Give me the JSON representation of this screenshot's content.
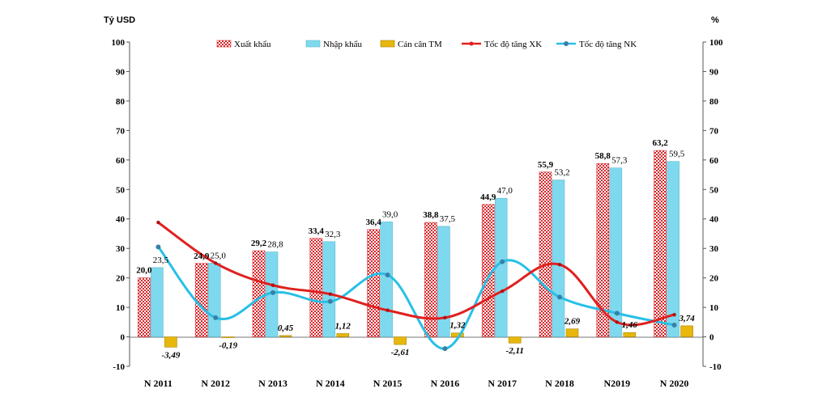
{
  "chart_data": {
    "type": "bar",
    "left_unit": "Tỷ USD",
    "right_unit": "%",
    "categories": [
      "N 2011",
      "N 2012",
      "N 2013",
      "N 2014",
      "N 2015",
      "N 2016",
      "N 2017",
      "N 2018",
      "N2019",
      "N 2020"
    ],
    "ylim": [
      -10,
      100
    ],
    "y2lim": [
      -10,
      100
    ],
    "y_ticks": [
      "-10",
      "0",
      "10",
      "20",
      "30",
      "40",
      "50",
      "60",
      "70",
      "80",
      "90",
      "100"
    ],
    "y2_ticks": [
      "-10",
      "0",
      "10",
      "20",
      "30",
      "40",
      "50",
      "60",
      "70",
      "80",
      "90",
      "100"
    ],
    "legend_position": "top",
    "series": [
      {
        "name": "Xuất khẩu",
        "kind": "bar",
        "axis": "left",
        "color": "#d9262a",
        "values": [
          20.0,
          24.9,
          29.2,
          33.4,
          36.4,
          38.8,
          44.9,
          55.9,
          58.8,
          63.2
        ],
        "labels": [
          "20,0",
          "24,9",
          "29,2",
          "33,4",
          "36,4",
          "38,8",
          "44,9",
          "55,9",
          "58,8",
          "63,2"
        ]
      },
      {
        "name": "Nhập khẩu",
        "kind": "bar",
        "axis": "left",
        "color": "#7fd9ee",
        "values": [
          23.5,
          25.0,
          28.8,
          32.3,
          39.0,
          37.5,
          47.0,
          53.2,
          57.3,
          59.5
        ],
        "labels": [
          "23,5",
          "25,0",
          "28,8",
          "32,3",
          "39,0",
          "37,5",
          "47,0",
          "53,2",
          "57,3",
          "59,5"
        ]
      },
      {
        "name": "Cán cân TM",
        "kind": "bar",
        "axis": "left",
        "color": "#e8b70c",
        "values": [
          -3.49,
          -0.19,
          0.45,
          1.12,
          -2.61,
          1.32,
          -2.11,
          2.69,
          1.46,
          3.74
        ],
        "labels": [
          "-3,49",
          "-0,19",
          "0,45",
          "1,12",
          "-2,61",
          "1,32",
          "-2,11",
          "2,69",
          "1,46",
          "3,74"
        ]
      },
      {
        "name": "Tốc độ tăng XK",
        "kind": "line",
        "axis": "right",
        "color": "#e0201f",
        "values": [
          38.8,
          25.0,
          17.5,
          14.5,
          9.0,
          6.5,
          15.5,
          24.5,
          5.0,
          7.5
        ]
      },
      {
        "name": "Tốc độ tăng NK",
        "kind": "line",
        "axis": "right",
        "color": "#27c0e6",
        "values": [
          30.5,
          6.5,
          15.0,
          12.0,
          21.0,
          -4.0,
          25.5,
          13.5,
          8.0,
          4.0
        ]
      }
    ]
  }
}
